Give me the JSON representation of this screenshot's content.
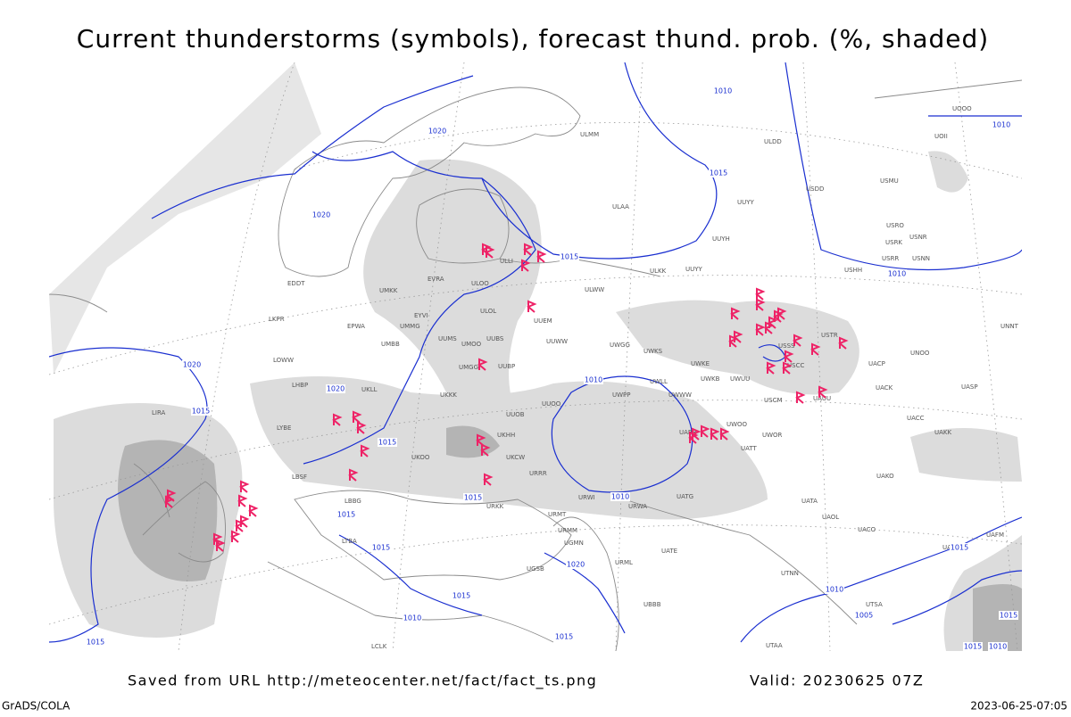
{
  "header": {
    "title": "Current thunderstorms (symbols), forecast thund. prob. (%, shaded)"
  },
  "footer": {
    "source": "Saved from URL http://meteocenter.net/fact/fact_ts.png",
    "valid": "Valid: 20230625 07Z",
    "software": "GrADS/COLA",
    "timestamp": "2023-06-25-07:05"
  },
  "isobars": {
    "labels": [
      "1010",
      "1020",
      "1010",
      "1015",
      "1020",
      "1015",
      "1010",
      "1020",
      "1020",
      "1010",
      "1015",
      "1015",
      "1010",
      "1015",
      "1015",
      "1015",
      "1020",
      "1015",
      "1010",
      "1015",
      "1010",
      "1015",
      "1015",
      "1015",
      "1015",
      "1010",
      "1005"
    ]
  },
  "stations": [
    "ULLI",
    "ULAA",
    "ULMM",
    "UUYY",
    "UUYH",
    "ULKK",
    "UUYY",
    "ULWW",
    "UUEM",
    "ULOL",
    "ULOO",
    "EVRA",
    "UMKK",
    "EYVI",
    "UMMG",
    "EPWA",
    "UMBB",
    "UUMS",
    "UMOO",
    "UUBS",
    "UUWW",
    "UWGG",
    "UWKS",
    "UWKE",
    "UWKB",
    "UWUU",
    "UMGG",
    "UUBP",
    "UKLL",
    "LHBP",
    "LOWW",
    "EDDT",
    "LKPR",
    "UKKK",
    "UUOB",
    "UUOO",
    "UWPP",
    "UWWW",
    "UWLL",
    "USCM",
    "USSS",
    "USCC",
    "USTR",
    "UACP",
    "UNOO",
    "UNNT",
    "UNBB",
    "UACK",
    "UASP",
    "UAUU",
    "UACC",
    "UAKK",
    "UWOO",
    "UWOR",
    "UATT",
    "UARR",
    "UKHH",
    "UKCW",
    "URRR",
    "UKOO",
    "URWI",
    "URWA",
    "UATG",
    "UATA",
    "UAOL",
    "UACO",
    "UAKO",
    "USDD",
    "USMU",
    "USRO",
    "USRK",
    "USNR",
    "USRR",
    "USNN",
    "USHH",
    "ULDD",
    "UOOO",
    "UOII",
    "LYBE",
    "LBSF",
    "LBBG",
    "LTBA",
    "LIRA",
    "URMT",
    "URMM",
    "UGMN",
    "URML",
    "UATE",
    "UBBB",
    "UGSB",
    "UTNN",
    "UTSA",
    "UTAA",
    "UAFM",
    "UADD",
    "LCLK",
    "URKK"
  ]
}
